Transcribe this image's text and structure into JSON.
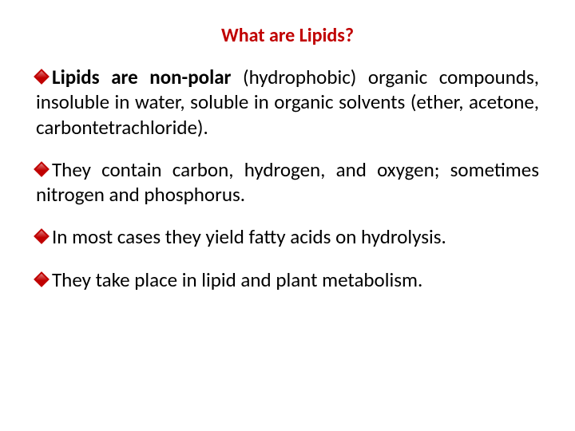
{
  "title": "What are Lipids?",
  "bullets": [
    {
      "bold_lead": "Lipids are non-polar",
      "rest": " (hydrophobic) organic compounds, insoluble in water, soluble in organic solvents (ether, acetone, carbontetrachloride)."
    },
    {
      "bold_lead": "",
      "rest": "They contain carbon, hydrogen, and oxygen; sometimes nitrogen and phosphorus."
    },
    {
      "bold_lead": "",
      "rest": "In most cases they yield fatty acids on hydrolysis."
    },
    {
      "bold_lead": "",
      "rest": "They take place in lipid and plant metabolism."
    }
  ],
  "colors": {
    "title_color": "#c00000",
    "bullet_color": "#c00000",
    "text_color": "#000000",
    "background": "#ffffff"
  },
  "typography": {
    "title_fontsize": 24,
    "body_fontsize": 25,
    "font_family": "Calibri"
  }
}
